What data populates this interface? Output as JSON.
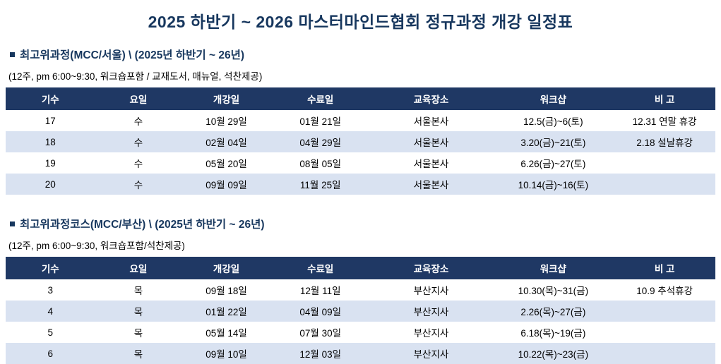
{
  "page": {
    "title": "2025 하반기 ~ 2026 마스터마인드협회 정규과정 개강 일정표"
  },
  "sections": [
    {
      "heading": "최고위과정(MCC/서울)  \\ (2025년 하반기 ~ 26년)",
      "subheading": "(12주, pm 6:00~9:30, 워크숍포함 / 교재도서, 매뉴얼, 석찬제공)",
      "columns": [
        "기수",
        "요일",
        "개강일",
        "수료일",
        "교육장소",
        "워크샵",
        "비 고"
      ],
      "rows": [
        [
          "17",
          "수",
          "10월 29일",
          "01월 21일",
          "서울본사",
          "12.5(금)~6(토)",
          "12.31 연말 휴강"
        ],
        [
          "18",
          "수",
          "02월 04일",
          "04월 29일",
          "서울본사",
          "3.20(금)~21(토)",
          "2.18 설날휴강"
        ],
        [
          "19",
          "수",
          "05월 20일",
          "08월 05일",
          "서울본사",
          "6.26(금)~27(토)",
          ""
        ],
        [
          "20",
          "수",
          "09월 09일",
          "11월 25일",
          "서울본사",
          "10.14(금)~16(토)",
          ""
        ]
      ]
    },
    {
      "heading": "최고위과정코스(MCC/부산)  \\ (2025년 하반기 ~ 26년)",
      "subheading": "(12주, pm 6:00~9:30, 워크숍포함/석찬제공)",
      "columns": [
        "기수",
        "요일",
        "개강일",
        "수료일",
        "교육장소",
        "워크샵",
        "비 고"
      ],
      "rows": [
        [
          "3",
          "목",
          "09월 18일",
          "12월 11일",
          "부산지사",
          "10.30(목)~31(금)",
          "10.9 추석휴강"
        ],
        [
          "4",
          "목",
          "01월 22일",
          "04월 09일",
          "부산지사",
          "2.26(목)~27(금)",
          ""
        ],
        [
          "5",
          "목",
          "05월 14일",
          "07월 30일",
          "부산지사",
          "6.18(목)~19(금)",
          ""
        ],
        [
          "6",
          "목",
          "09월 10일",
          "12월 03일",
          "부산지사",
          "10.22(목)~23(금)",
          ""
        ]
      ]
    }
  ]
}
